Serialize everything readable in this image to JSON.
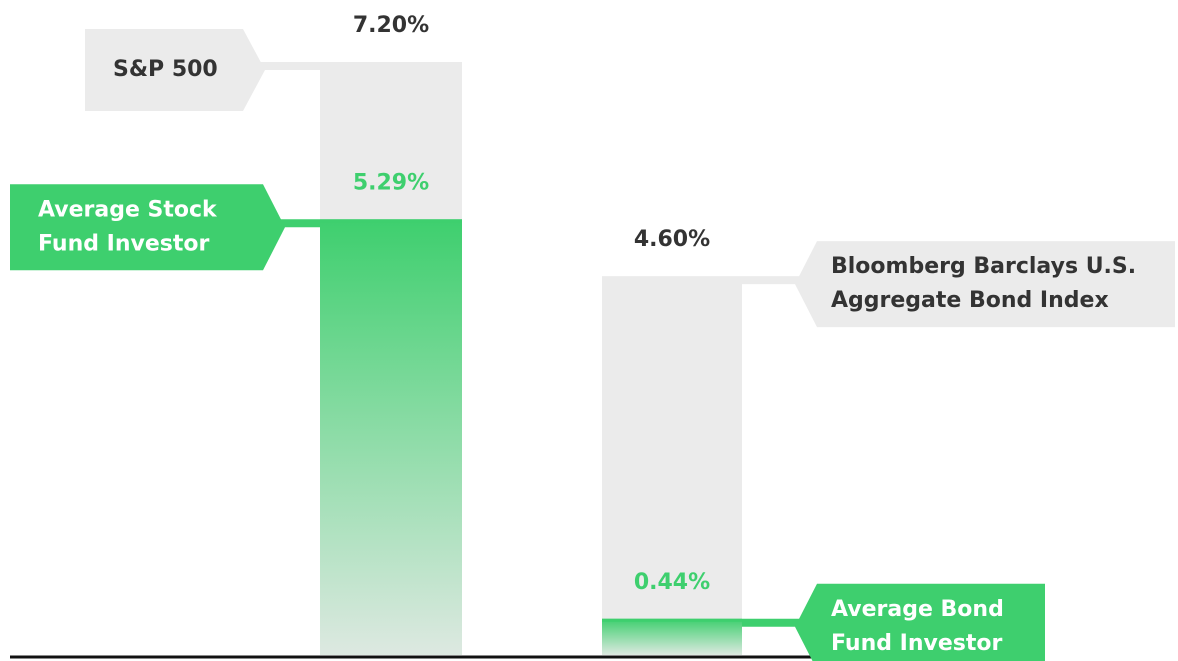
{
  "chart_data": {
    "type": "bar",
    "series": [
      {
        "color": "#ebebeb",
        "text_color": "#333333",
        "labels": [
          [
            "S&P 500"
          ],
          [
            "Bloomberg Barclays U.S.",
            "Aggregate Bond Index"
          ]
        ],
        "values": [
          7.2,
          4.6
        ],
        "value_labels": [
          "7.20%",
          "4.60%"
        ]
      },
      {
        "color": "#3ecf6e",
        "text_color": "#ffffff",
        "labels": [
          [
            "Average Stock",
            "Fund Investor"
          ],
          [
            "Average Bond",
            "Fund Investor"
          ]
        ],
        "values": [
          5.29,
          0.44
        ],
        "value_labels": [
          "5.29%",
          "0.44%"
        ]
      }
    ]
  }
}
